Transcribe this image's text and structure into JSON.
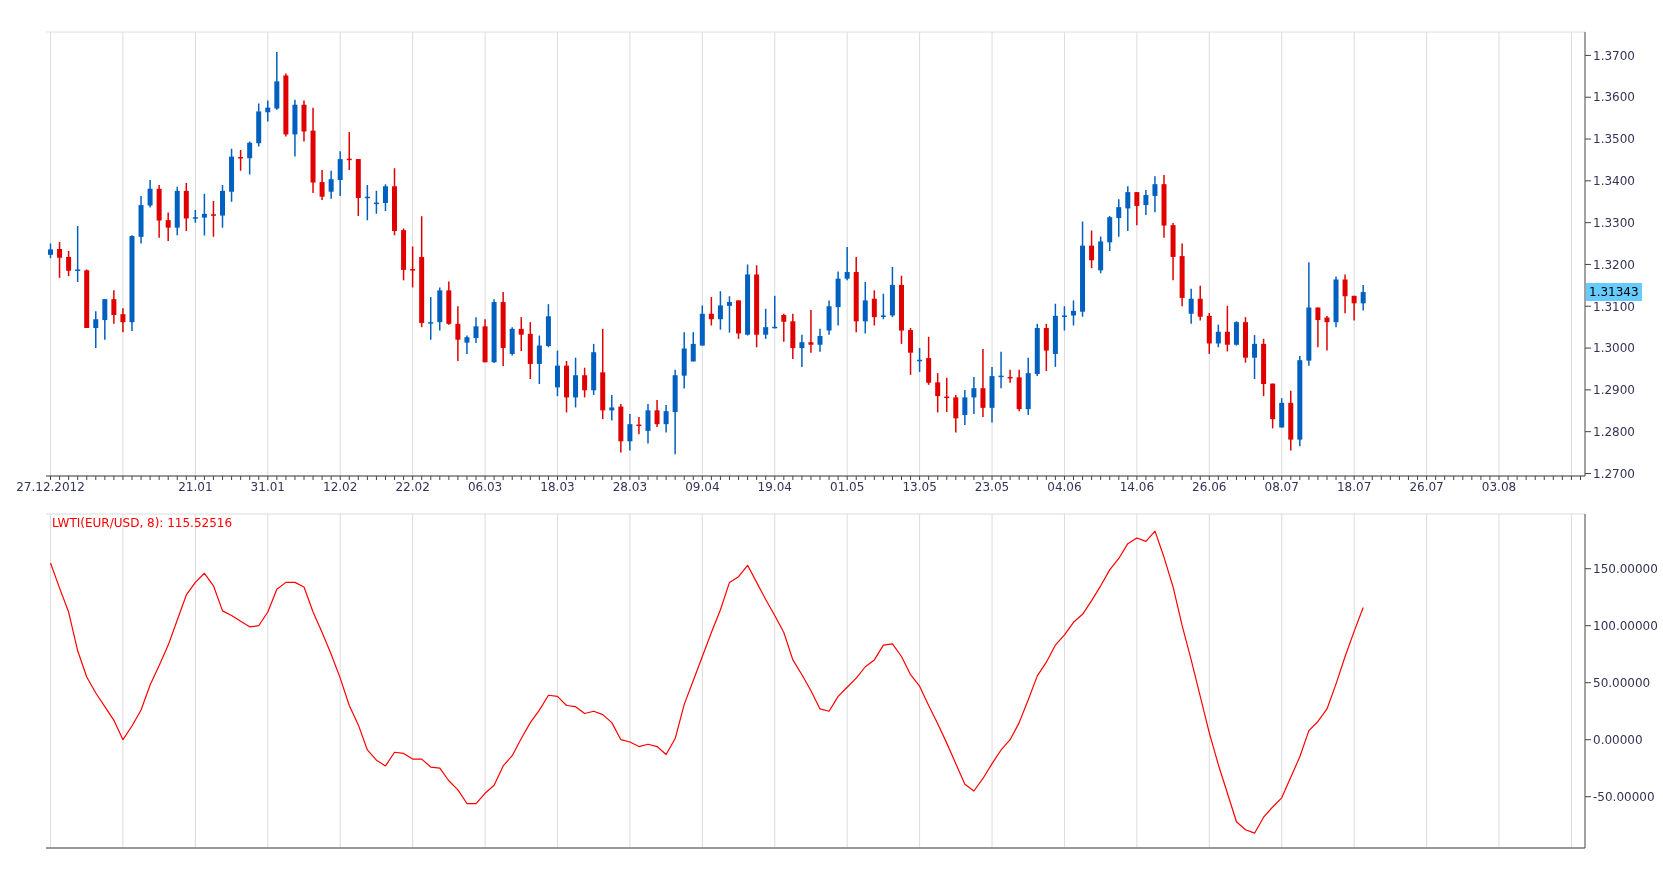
{
  "chart_data": [
    {
      "type": "candlestick",
      "categories": [
        "27.12.2012",
        null,
        null,
        null,
        null,
        null,
        null,
        null,
        null,
        null,
        null,
        null,
        null,
        null,
        null,
        null,
        "21.01",
        null,
        null,
        null,
        null,
        null,
        null,
        null,
        "31.01",
        null,
        null,
        null,
        null,
        null,
        null,
        null,
        "12.02",
        null,
        null,
        null,
        null,
        null,
        null,
        null,
        "22.02",
        null,
        null,
        null,
        null,
        null,
        null,
        null,
        "06.03",
        null,
        null,
        null,
        null,
        null,
        null,
        null,
        "18.03",
        null,
        null,
        null,
        null,
        null,
        null,
        null,
        "28.03",
        null,
        null,
        null,
        null,
        null,
        null,
        null,
        "09.04",
        null,
        null,
        null,
        null,
        null,
        null,
        null,
        "19.04",
        null,
        null,
        null,
        null,
        null,
        null,
        null,
        "01.05",
        null,
        null,
        null,
        null,
        null,
        null,
        null,
        "13.05",
        null,
        null,
        null,
        null,
        null,
        null,
        null,
        "23.05",
        null,
        null,
        null,
        null,
        null,
        null,
        null,
        "04.06",
        null,
        null,
        null,
        null,
        null,
        null,
        null,
        "14.06",
        null,
        null,
        null,
        null,
        null,
        null,
        null,
        "26.06",
        null,
        null,
        null,
        null,
        null,
        null,
        null,
        "08.07",
        null,
        null,
        null,
        null,
        null,
        null,
        null,
        "18.07",
        null,
        null,
        null,
        null,
        null,
        null,
        null,
        "26.07",
        null,
        null,
        null,
        null,
        null,
        null,
        null,
        "03.08",
        null,
        null,
        null,
        null,
        null,
        null,
        null,
        null,
        null
      ],
      "ohlc": [
        [
          1.3223,
          1.325,
          1.3215,
          1.3236
        ],
        [
          1.3237,
          1.3254,
          1.3168,
          1.3216
        ],
        [
          1.3218,
          1.3232,
          1.3172,
          1.3185
        ],
        [
          1.3187,
          1.3292,
          1.3158,
          1.3188
        ],
        [
          1.3186,
          1.3188,
          1.3048,
          1.3048
        ],
        [
          1.3048,
          1.3088,
          1.3,
          1.3069
        ],
        [
          1.3067,
          1.3117,
          1.302,
          1.3117
        ],
        [
          1.3117,
          1.3138,
          1.3058,
          1.3079
        ],
        [
          1.3081,
          1.3095,
          1.3038,
          1.3062
        ],
        [
          1.3062,
          1.327,
          1.3041,
          1.3268
        ],
        [
          1.3266,
          1.3364,
          1.325,
          1.3342
        ],
        [
          1.3341,
          1.3402,
          1.3336,
          1.3381
        ],
        [
          1.3381,
          1.339,
          1.3264,
          1.3305
        ],
        [
          1.3306,
          1.3324,
          1.3256,
          1.3288
        ],
        [
          1.3288,
          1.3386,
          1.327,
          1.3376
        ],
        [
          1.3376,
          1.3395,
          1.328,
          1.331
        ],
        [
          1.3312,
          1.333,
          1.33,
          1.3313
        ],
        [
          1.3312,
          1.3369,
          1.3269,
          1.3321
        ],
        [
          1.332,
          1.3352,
          1.3266,
          1.3319
        ],
        [
          1.3317,
          1.339,
          1.3288,
          1.3376
        ],
        [
          1.3374,
          1.3477,
          1.335,
          1.3458
        ],
        [
          1.3457,
          1.3474,
          1.3424,
          1.3456
        ],
        [
          1.3454,
          1.3494,
          1.3415,
          1.3491
        ],
        [
          1.349,
          1.3585,
          1.3482,
          1.3566
        ],
        [
          1.3564,
          1.3592,
          1.3542,
          1.3575
        ],
        [
          1.3573,
          1.3708,
          1.357,
          1.3638
        ],
        [
          1.3652,
          1.3657,
          1.3506,
          1.3511
        ],
        [
          1.3511,
          1.3594,
          1.3458,
          1.3582
        ],
        [
          1.3582,
          1.3592,
          1.3494,
          1.3518
        ],
        [
          1.352,
          1.3575,
          1.3371,
          1.3396
        ],
        [
          1.3397,
          1.3426,
          1.3354,
          1.3362
        ],
        [
          1.3374,
          1.3424,
          1.3357,
          1.3404
        ],
        [
          1.3402,
          1.3471,
          1.3364,
          1.3452
        ],
        [
          1.3453,
          1.3517,
          1.3426,
          1.3452
        ],
        [
          1.3452,
          1.3452,
          1.3316,
          1.3359
        ],
        [
          1.3361,
          1.339,
          1.3306,
          1.3362
        ],
        [
          1.3347,
          1.3376,
          1.3321,
          1.3348
        ],
        [
          1.3347,
          1.3392,
          1.3328,
          1.3387
        ],
        [
          1.3387,
          1.343,
          1.327,
          1.328
        ],
        [
          1.3282,
          1.3286,
          1.3162,
          1.3187
        ],
        [
          1.3189,
          1.3243,
          1.3145,
          1.3188
        ],
        [
          1.3218,
          1.3315,
          1.305,
          1.306
        ],
        [
          1.3061,
          1.3122,
          1.302,
          1.3062
        ],
        [
          1.3062,
          1.3145,
          1.3042,
          1.3138
        ],
        [
          1.3138,
          1.3159,
          1.3056,
          1.3058
        ],
        [
          1.3058,
          1.31,
          1.2969,
          1.302
        ],
        [
          1.3013,
          1.303,
          1.2986,
          1.3026
        ],
        [
          1.3024,
          1.3074,
          1.3012,
          1.3052
        ],
        [
          1.3052,
          1.3069,
          1.2966,
          1.2966
        ],
        [
          1.2966,
          1.3117,
          1.2965,
          1.311
        ],
        [
          1.311,
          1.3134,
          1.2957,
          1.3
        ],
        [
          1.2986,
          1.305,
          1.2982,
          1.3046
        ],
        [
          1.3046,
          1.3074,
          1.2993,
          1.3032
        ],
        [
          1.3034,
          1.3062,
          1.2926,
          1.2962
        ],
        [
          1.2962,
          1.303,
          1.2914,
          1.3006
        ],
        [
          1.3005,
          1.3105,
          1.3002,
          1.3076
        ],
        [
          1.2906,
          1.2994,
          1.2885,
          1.2958
        ],
        [
          1.2958,
          1.2969,
          1.2846,
          1.2882
        ],
        [
          1.2882,
          1.2977,
          1.2858,
          1.2935
        ],
        [
          1.2935,
          1.2953,
          1.2882,
          1.2899
        ],
        [
          1.2899,
          1.301,
          1.2888,
          1.299
        ],
        [
          1.2942,
          1.3046,
          1.283,
          1.2851
        ],
        [
          1.2851,
          1.2888,
          1.2827,
          1.2858
        ],
        [
          1.286,
          1.2866,
          1.275,
          1.2777
        ],
        [
          1.2777,
          1.2842,
          1.2755,
          1.2818
        ],
        [
          1.2817,
          1.2835,
          1.2794,
          1.2816
        ],
        [
          1.2802,
          1.2866,
          1.2772,
          1.2851
        ],
        [
          1.2851,
          1.2876,
          1.2811,
          1.2818
        ],
        [
          1.2818,
          1.2864,
          1.2798,
          1.2849
        ],
        [
          1.2847,
          1.2948,
          1.2746,
          1.2935
        ],
        [
          1.2934,
          1.3038,
          1.2903,
          1.2999
        ],
        [
          1.2968,
          1.3038,
          1.2968,
          1.301
        ],
        [
          1.3006,
          1.3102,
          1.3006,
          1.3082
        ],
        [
          1.3082,
          1.3122,
          1.3054,
          1.3069
        ],
        [
          1.3069,
          1.3136,
          1.3044,
          1.3102
        ],
        [
          1.3101,
          1.3124,
          1.3037,
          1.311
        ],
        [
          1.3114,
          1.3114,
          1.3022,
          1.3035
        ],
        [
          1.3032,
          1.32,
          1.303,
          1.3176
        ],
        [
          1.3176,
          1.3198,
          1.3002,
          1.3032
        ],
        [
          1.3032,
          1.3094,
          1.3022,
          1.305
        ],
        [
          1.305,
          1.3125,
          1.3047,
          1.3051
        ],
        [
          1.3079,
          1.3082,
          1.3015,
          1.3063
        ],
        [
          1.3064,
          1.3082,
          1.2974,
          1.3
        ],
        [
          1.3,
          1.3032,
          1.2955,
          1.3014
        ],
        [
          1.3014,
          1.3091,
          1.2989,
          1.3008
        ],
        [
          1.3008,
          1.3046,
          1.2991,
          1.3029
        ],
        [
          1.3042,
          1.3114,
          1.3032,
          1.31
        ],
        [
          1.3098,
          1.3183,
          1.3054,
          1.3166
        ],
        [
          1.3166,
          1.3242,
          1.3162,
          1.3182
        ],
        [
          1.3182,
          1.3218,
          1.3038,
          1.3064
        ],
        [
          1.3064,
          1.3158,
          1.3035,
          1.3114
        ],
        [
          1.3118,
          1.3138,
          1.3054,
          1.3074
        ],
        [
          1.3077,
          1.313,
          1.3069,
          1.3078
        ],
        [
          1.3078,
          1.3194,
          1.3074,
          1.3151
        ],
        [
          1.3151,
          1.3173,
          1.301,
          1.3042
        ],
        [
          1.3043,
          1.3048,
          1.2936,
          1.2989
        ],
        [
          1.2971,
          1.3,
          1.2943,
          1.2972
        ],
        [
          1.2976,
          1.3027,
          1.2912,
          1.2917
        ],
        [
          1.2918,
          1.294,
          1.2846,
          1.2885
        ],
        [
          1.2884,
          1.2929,
          1.2847,
          1.2883
        ],
        [
          1.2882,
          1.2888,
          1.2798,
          1.2832
        ],
        [
          1.284,
          1.29,
          1.2816,
          1.2882
        ],
        [
          1.2882,
          1.2931,
          1.2842,
          1.2904
        ],
        [
          1.2904,
          1.2998,
          1.2835,
          1.2857
        ],
        [
          1.2857,
          1.2955,
          1.2822,
          1.2933
        ],
        [
          1.2933,
          1.2991,
          1.2904,
          1.2934
        ],
        [
          1.2931,
          1.2948,
          1.2917,
          1.293
        ],
        [
          1.293,
          1.2948,
          1.2849,
          1.2854
        ],
        [
          1.2854,
          1.2977,
          1.284,
          1.294
        ],
        [
          1.2938,
          1.3058,
          1.2933,
          1.3048
        ],
        [
          1.3048,
          1.3058,
          1.2945,
          1.2994
        ],
        [
          1.2986,
          1.3106,
          1.2955,
          1.3077
        ],
        [
          1.3077,
          1.31,
          1.3042,
          1.3078
        ],
        [
          1.3078,
          1.3114,
          1.3054,
          1.3089
        ],
        [
          1.3087,
          1.3303,
          1.3075,
          1.3245
        ],
        [
          1.3245,
          1.3281,
          1.3191,
          1.321
        ],
        [
          1.3186,
          1.3267,
          1.3179,
          1.3255
        ],
        [
          1.3253,
          1.3316,
          1.3232,
          1.3313
        ],
        [
          1.3311,
          1.3356,
          1.3266,
          1.3337
        ],
        [
          1.3334,
          1.3387,
          1.328,
          1.3373
        ],
        [
          1.3373,
          1.3373,
          1.3294,
          1.334
        ],
        [
          1.3342,
          1.3378,
          1.3318,
          1.3366
        ],
        [
          1.3364,
          1.3411,
          1.3325,
          1.3392
        ],
        [
          1.3392,
          1.3414,
          1.3264,
          1.3293
        ],
        [
          1.3294,
          1.3299,
          1.3162,
          1.3218
        ],
        [
          1.322,
          1.325,
          1.31,
          1.312
        ],
        [
          1.3082,
          1.3142,
          1.3058,
          1.3118
        ],
        [
          1.3118,
          1.3149,
          1.3066,
          1.3075
        ],
        [
          1.3077,
          1.3084,
          1.2986,
          1.3011
        ],
        [
          1.3011,
          1.3056,
          1.3002,
          1.3039
        ],
        [
          1.3039,
          1.3101,
          1.2992,
          1.3008
        ],
        [
          1.3008,
          1.3064,
          1.3006,
          1.3062
        ],
        [
          1.3062,
          1.3074,
          1.2965,
          1.2977
        ],
        [
          1.2977,
          1.3031,
          1.2926,
          1.301
        ],
        [
          1.301,
          1.3022,
          1.2885,
          1.2914
        ],
        [
          1.2915,
          1.2915,
          1.2808,
          1.283
        ],
        [
          1.281,
          1.288,
          1.281,
          1.2869
        ],
        [
          1.2869,
          1.2898,
          1.2755,
          1.2781
        ],
        [
          1.2781,
          1.2981,
          1.2765,
          1.2971
        ],
        [
          1.297,
          1.3205,
          1.2958,
          1.3097
        ],
        [
          1.3097,
          1.3097,
          1.3002,
          1.3067
        ],
        [
          1.3073,
          1.3077,
          1.2994,
          1.3062
        ],
        [
          1.3062,
          1.3171,
          1.305,
          1.3164
        ],
        [
          1.3164,
          1.3176,
          1.3083,
          1.3124
        ],
        [
          1.3125,
          1.3125,
          1.3066,
          1.3107
        ],
        [
          1.3107,
          1.3151,
          1.309,
          1.3134
        ],
        null,
        null,
        null,
        null,
        null,
        null,
        null,
        null,
        null,
        null,
        null,
        null,
        null,
        null,
        null,
        null,
        null,
        null,
        null,
        null,
        null,
        null,
        null,
        null
      ],
      "colors": [
        "#0060c0",
        "#e00000",
        "#e00000",
        "#0060c0",
        "#e00000",
        "#0060c0",
        "#0060c0",
        "#e00000",
        "#e00000",
        "#0060c0",
        "#0060c0",
        "#0060c0",
        "#e00000",
        "#e00000",
        "#0060c0",
        "#e00000",
        "#0060c0",
        "#0060c0",
        "#e00000",
        "#0060c0",
        "#0060c0",
        "#e00000",
        "#0060c0",
        "#0060c0",
        "#0060c0",
        "#0060c0",
        "#e00000",
        "#0060c0",
        "#e00000",
        "#e00000",
        "#e00000",
        "#0060c0",
        "#0060c0",
        "#e00000",
        "#e00000",
        "#0060c0",
        "#0060c0",
        "#0060c0",
        "#e00000",
        "#e00000",
        "#e00000",
        "#e00000",
        "#0060c0",
        "#0060c0",
        "#e00000",
        "#e00000",
        "#0060c0",
        "#0060c0",
        "#e00000",
        "#0060c0",
        "#e00000",
        "#0060c0",
        "#e00000",
        "#e00000",
        "#0060c0",
        "#0060c0",
        "#0060c0",
        "#e00000",
        "#0060c0",
        "#e00000",
        "#0060c0",
        "#e00000",
        "#0060c0",
        "#e00000",
        "#0060c0",
        "#e00000",
        "#0060c0",
        "#e00000",
        "#0060c0",
        "#0060c0",
        "#0060c0",
        "#0060c0",
        "#0060c0",
        "#e00000",
        "#0060c0",
        "#0060c0",
        "#e00000",
        "#0060c0",
        "#e00000",
        "#0060c0",
        "#0060c0",
        "#e00000",
        "#e00000",
        "#0060c0",
        "#e00000",
        "#0060c0",
        "#0060c0",
        "#0060c0",
        "#0060c0",
        "#e00000",
        "#0060c0",
        "#e00000",
        "#0060c0",
        "#0060c0",
        "#e00000",
        "#e00000",
        "#0060c0",
        "#e00000",
        "#e00000",
        "#e00000",
        "#e00000",
        "#0060c0",
        "#0060c0",
        "#e00000",
        "#0060c0",
        "#0060c0",
        "#e00000",
        "#e00000",
        "#0060c0",
        "#0060c0",
        "#e00000",
        "#0060c0",
        "#0060c0",
        "#0060c0",
        "#0060c0",
        "#e00000",
        "#0060c0",
        "#0060c0",
        "#0060c0",
        "#0060c0",
        "#e00000",
        "#0060c0",
        "#0060c0",
        "#e00000",
        "#e00000",
        "#e00000",
        "#0060c0",
        "#e00000",
        "#e00000",
        "#0060c0",
        "#e00000",
        "#0060c0",
        "#e00000",
        "#0060c0",
        "#e00000",
        "#e00000",
        "#0060c0",
        "#e00000",
        "#0060c0",
        "#0060c0",
        "#e00000",
        "#e00000",
        "#0060c0",
        "#e00000",
        "#e00000",
        "#0060c0",
        null,
        null,
        null,
        null,
        null,
        null,
        null,
        null,
        null,
        null,
        null,
        null,
        null,
        null,
        null,
        null,
        null,
        null,
        null,
        null,
        null,
        null,
        null,
        null
      ],
      "ylim": [
        1.2694,
        1.3756
      ],
      "yticks": [
        {
          "value": 1.27,
          "label": "1.2700"
        },
        {
          "value": 1.28,
          "label": "1.2800"
        },
        {
          "value": 1.29,
          "label": "1.2900"
        },
        {
          "value": 1.3,
          "label": "1.3000"
        },
        {
          "value": 1.31,
          "label": "1.3100"
        },
        {
          "value": 1.32,
          "label": "1.3200"
        },
        {
          "value": 1.33,
          "label": "1.3300"
        },
        {
          "value": 1.34,
          "label": "1.3400"
        },
        {
          "value": 1.35,
          "label": "1.3500"
        },
        {
          "value": 1.36,
          "label": "1.3600"
        },
        {
          "value": 1.37,
          "label": "1.3700"
        }
      ],
      "annotations": [
        "1.31343"
      ],
      "grid": true
    },
    {
      "type": "line",
      "title": "LWTI(EUR/USD, 8): 115.52516",
      "categories": [
        "27.12.2012",
        null,
        null,
        null,
        null,
        null,
        null,
        null,
        null,
        null,
        null,
        null,
        null,
        null,
        null,
        null,
        "21.01",
        null,
        null,
        null,
        null,
        null,
        null,
        null,
        "31.01",
        null,
        null,
        null,
        null,
        null,
        null,
        null,
        "12.02",
        null,
        null,
        null,
        null,
        null,
        null,
        null,
        "22.02",
        null,
        null,
        null,
        null,
        null,
        null,
        null,
        "06.03",
        null,
        null,
        null,
        null,
        null,
        null,
        null,
        "18.03",
        null,
        null,
        null,
        null,
        null,
        null,
        null,
        "28.03",
        null,
        null,
        null,
        null,
        null,
        null,
        null,
        "09.04",
        null,
        null,
        null,
        null,
        null,
        null,
        null,
        "19.04",
        null,
        null,
        null,
        null,
        null,
        null,
        null,
        "01.05",
        null,
        null,
        null,
        null,
        null,
        null,
        null,
        "13.05",
        null,
        null,
        null,
        null,
        null,
        null,
        null,
        "23.05",
        null,
        null,
        null,
        null,
        null,
        null,
        null,
        "04.06",
        null,
        null,
        null,
        null,
        null,
        null,
        null,
        "14.06",
        null,
        null,
        null,
        null,
        null,
        null,
        null,
        "26.06",
        null,
        null,
        null,
        null,
        null,
        null,
        null,
        "08.07",
        null,
        null,
        null,
        null,
        null,
        null,
        null,
        "18.07",
        null,
        null,
        null,
        null,
        null,
        null,
        null,
        "26.07",
        null,
        null,
        null,
        null,
        null,
        null,
        null,
        "03.08",
        null,
        null,
        null,
        null,
        null,
        null,
        null,
        null,
        null
      ],
      "series": [
        {
          "color": "#ff0000",
          "values": [
            155,
            133,
            112,
            78,
            55,
            41,
            29,
            17,
            0,
            12,
            26,
            48,
            65,
            83,
            105,
            127,
            138,
            146,
            135,
            113,
            109,
            104,
            99,
            100,
            112,
            132,
            138,
            138,
            134,
            112,
            94,
            75,
            54,
            30,
            13,
            -9,
            -18,
            -23,
            -11,
            -12,
            -17,
            -17,
            -24,
            -25,
            -36,
            -44,
            -56,
            -56,
            -47,
            -40,
            -23,
            -14,
            1,
            15,
            26,
            39,
            38,
            30,
            29,
            23,
            25,
            22,
            15,
            0,
            -2,
            -6,
            -4,
            -6,
            -13,
            1,
            31,
            52,
            73,
            94,
            114,
            138,
            143,
            153,
            138,
            123,
            109,
            94,
            70,
            57,
            43,
            27,
            25,
            38,
            46,
            54,
            64,
            70,
            83,
            84,
            73,
            57,
            47,
            30,
            14,
            -3,
            -21,
            -39,
            -45,
            -34,
            -21,
            -9,
            0,
            15,
            35,
            56,
            68,
            83,
            92,
            103,
            110,
            122,
            135,
            149,
            159,
            172,
            177,
            174,
            183,
            160,
            134,
            100,
            70,
            38,
            6,
            -22,
            -47,
            -72,
            -79,
            -82,
            -68,
            -59,
            -51,
            -33,
            -15,
            8,
            16,
            27,
            49,
            73,
            95,
            116,
            null,
            null,
            null,
            null,
            null,
            null,
            null,
            null,
            null,
            null,
            null,
            null,
            null,
            null,
            null,
            null,
            null,
            null,
            null,
            null,
            null,
            null,
            null,
            null
          ]
        }
      ],
      "ylim": [
        -95,
        198
      ],
      "yticks": [
        {
          "value": -50,
          "label": "-50.00000"
        },
        {
          "value": 0,
          "label": "0.00000"
        },
        {
          "value": 50,
          "label": "50.00000"
        },
        {
          "value": 100,
          "label": "100.00000"
        },
        {
          "value": 150,
          "label": "150.00000"
        }
      ],
      "tick_labels": "y",
      "grid": true
    }
  ]
}
